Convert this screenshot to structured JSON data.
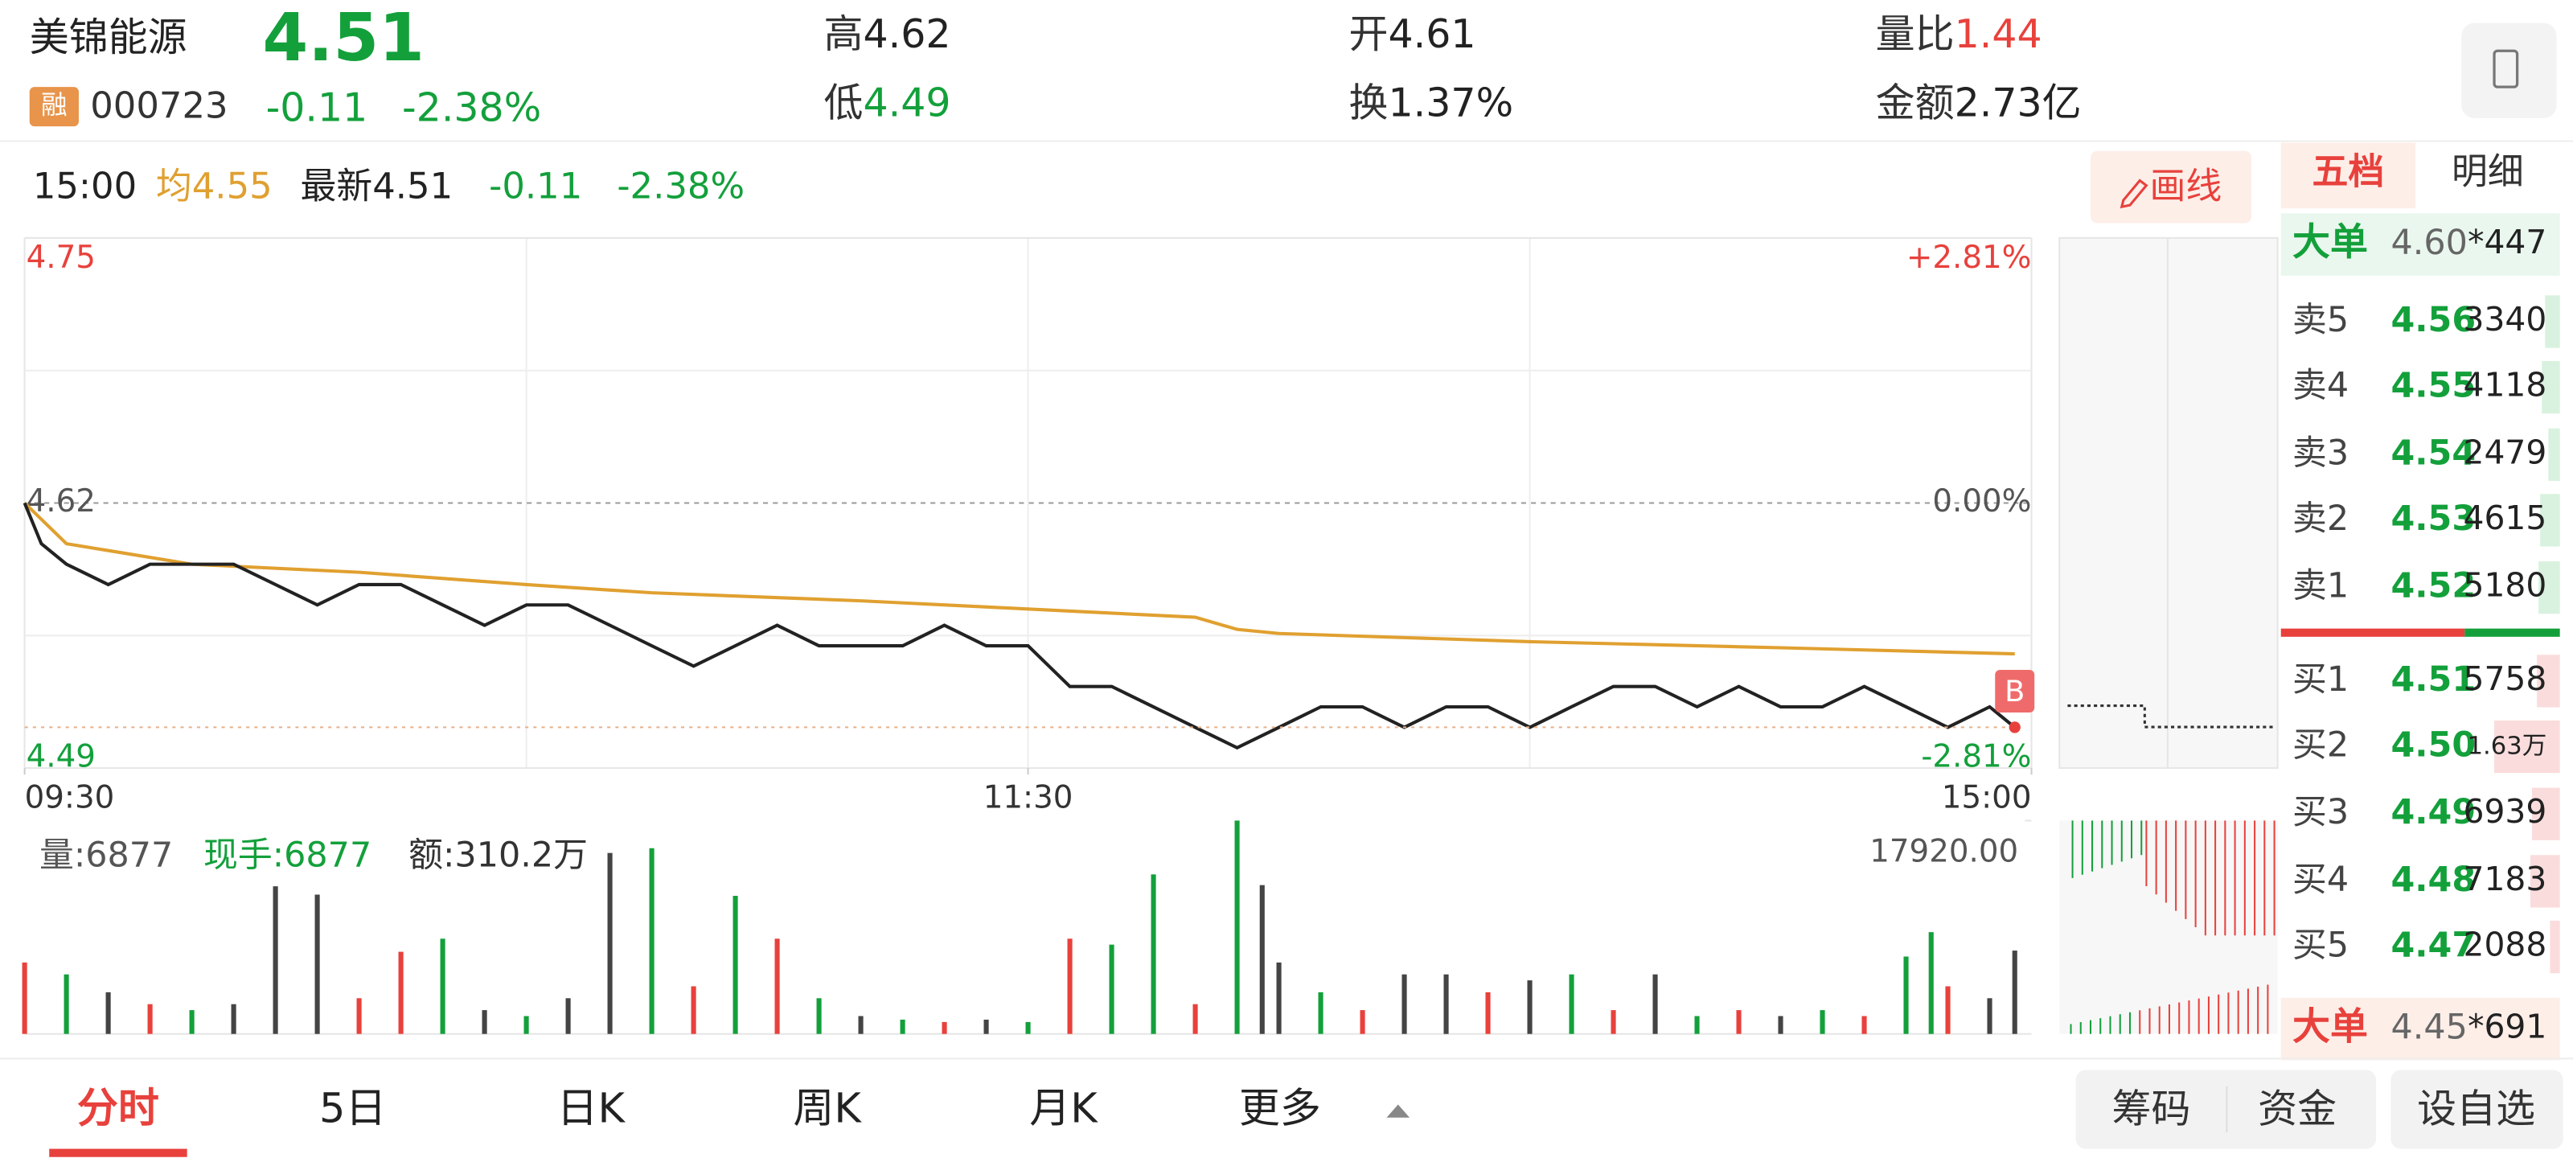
{
  "header": {
    "name": "美锦能源",
    "price": "4.51",
    "badge": "融",
    "code": "000723",
    "change": "-0.11",
    "change_pct": "-2.38%",
    "stats": [
      {
        "label": "高",
        "value": "4.62"
      },
      {
        "label": "低",
        "value": "4.49"
      },
      {
        "label": "开",
        "value": "4.61"
      },
      {
        "label": "换",
        "value": "1.37%"
      },
      {
        "label": "量比",
        "value": "1.44"
      },
      {
        "label": "金额",
        "value": "2.73亿"
      }
    ]
  },
  "info_bar": {
    "time": "15:00",
    "avg": "4.55",
    "latest": "4.51",
    "change": "-0.11",
    "change_pct": "-2.38%",
    "draw_button": "画线"
  },
  "chart_data": [
    {
      "type": "line",
      "xlim": [
        0,
        240
      ],
      "xticks": [
        {
          "value": 0,
          "label": "09:30"
        },
        {
          "value": 120,
          "label": "11:30"
        },
        {
          "value": 240,
          "label": "15:00"
        }
      ],
      "ylim": [
        4.49,
        4.75
      ],
      "yticks": [
        4.75,
        4.62,
        4.49
      ],
      "y2lim": [
        -2.81,
        2.81
      ],
      "y2ticks": [
        {
          "value": 2.81,
          "label": "+2.81%"
        },
        {
          "value": 0,
          "label": "0.00%"
        },
        {
          "value": -2.81,
          "label": "-2.81%"
        }
      ],
      "series": [
        {
          "name": "均",
          "color": "#e0a030",
          "x": [
            0,
            5,
            20,
            40,
            60,
            75,
            100,
            120,
            140,
            145,
            150,
            180,
            210,
            238
          ],
          "values": [
            4.62,
            4.6,
            4.59,
            4.586,
            4.58,
            4.576,
            4.572,
            4.568,
            4.564,
            4.558,
            4.556,
            4.552,
            4.549,
            4.546
          ]
        },
        {
          "name": "最新",
          "color": "#222222",
          "x": [
            0,
            2,
            5,
            10,
            15,
            20,
            25,
            30,
            35,
            40,
            45,
            50,
            55,
            60,
            65,
            70,
            75,
            80,
            85,
            90,
            95,
            100,
            105,
            110,
            115,
            120,
            125,
            130,
            135,
            140,
            145,
            150,
            155,
            160,
            165,
            170,
            175,
            180,
            185,
            190,
            195,
            200,
            205,
            210,
            215,
            220,
            225,
            230,
            235,
            238
          ],
          "values": [
            4.62,
            4.6,
            4.59,
            4.58,
            4.59,
            4.59,
            4.59,
            4.58,
            4.57,
            4.58,
            4.58,
            4.57,
            4.56,
            4.57,
            4.57,
            4.56,
            4.55,
            4.54,
            4.55,
            4.56,
            4.55,
            4.55,
            4.55,
            4.56,
            4.55,
            4.55,
            4.53,
            4.53,
            4.52,
            4.51,
            4.5,
            4.51,
            4.52,
            4.52,
            4.51,
            4.52,
            4.52,
            4.51,
            4.52,
            4.53,
            4.53,
            4.52,
            4.53,
            4.52,
            4.52,
            4.53,
            4.52,
            4.51,
            4.52,
            4.51
          ]
        }
      ],
      "marker_label": "B"
    },
    {
      "type": "bar",
      "xlim": [
        0,
        240
      ],
      "ylim": [
        0,
        17920
      ],
      "yticks": [
        {
          "value": 17920,
          "label": "17920.00"
        }
      ],
      "volume_label": "量:6877",
      "current_label": "现手:6877",
      "amount_label": "额:310.2万",
      "x": [
        0,
        5,
        10,
        15,
        20,
        25,
        30,
        35,
        40,
        45,
        50,
        55,
        60,
        65,
        70,
        75,
        80,
        85,
        90,
        95,
        100,
        105,
        110,
        115,
        120,
        125,
        130,
        135,
        140,
        145,
        148,
        150,
        155,
        160,
        165,
        170,
        175,
        180,
        185,
        190,
        195,
        200,
        205,
        210,
        215,
        220,
        225,
        228,
        230,
        235,
        238
      ],
      "values": [
        6000,
        5000,
        3500,
        2500,
        2000,
        2500,
        12400,
        11700,
        3000,
        6900,
        8000,
        2000,
        1500,
        3000,
        15200,
        15600,
        4000,
        11600,
        8000,
        3000,
        1500,
        1200,
        1000,
        1200,
        1000,
        8000,
        7500,
        13400,
        2500,
        17920,
        12500,
        6000,
        3500,
        2000,
        5000,
        5000,
        3500,
        4500,
        5000,
        2000,
        5000,
        1500,
        2000,
        1500,
        2000,
        1500,
        6500,
        8550,
        4000,
        3000,
        7000
      ],
      "colors": [
        "#e8413c",
        "#13a03b",
        "#444444",
        "#e8413c",
        "#13a03b",
        "#444444",
        "#444444",
        "#444444",
        "#e8413c",
        "#e8413c",
        "#13a03b",
        "#444444",
        "#13a03b",
        "#444444",
        "#444444",
        "#13a03b",
        "#e8413c",
        "#13a03b",
        "#e8413c",
        "#13a03b",
        "#444444",
        "#13a03b",
        "#e8413c",
        "#444444",
        "#13a03b",
        "#e8413c",
        "#13a03b",
        "#13a03b",
        "#e8413c",
        "#13a03b",
        "#444444",
        "#444444",
        "#13a03b",
        "#e8413c",
        "#444444",
        "#444444",
        "#e8413c",
        "#444444",
        "#13a03b",
        "#e8413c",
        "#444444",
        "#13a03b",
        "#e8413c",
        "#444444",
        "#13a03b",
        "#e8413c",
        "#13a03b",
        "#13a03b",
        "#e8413c",
        "#444444",
        "#444444"
      ]
    }
  ],
  "order_book": {
    "tabs": [
      "五档",
      "明细"
    ],
    "big_sell": {
      "label": "大单",
      "price": "4.60",
      "volume": "*447"
    },
    "asks": [
      {
        "label": "卖5",
        "price": "4.56",
        "volume": "3340"
      },
      {
        "label": "卖4",
        "price": "4.55",
        "volume": "4118"
      },
      {
        "label": "卖3",
        "price": "4.54",
        "volume": "2479"
      },
      {
        "label": "卖2",
        "price": "4.53",
        "volume": "4615"
      },
      {
        "label": "卖1",
        "price": "4.52",
        "volume": "5180"
      }
    ],
    "bids": [
      {
        "label": "买1",
        "price": "4.51",
        "volume": "5758"
      },
      {
        "label": "买2",
        "price": "4.50",
        "volume": "1.63万"
      },
      {
        "label": "买3",
        "price": "4.49",
        "volume": "6939"
      },
      {
        "label": "买4",
        "price": "4.48",
        "volume": "7183"
      },
      {
        "label": "买5",
        "price": "4.47",
        "volume": "2088"
      }
    ],
    "big_buy": {
      "label": "大单",
      "price": "4.45",
      "volume": "*691"
    }
  },
  "bottom_bar": {
    "tabs": [
      "分时",
      "5日",
      "日K",
      "周K",
      "月K",
      "更多"
    ],
    "buttons": [
      "筹码",
      "资金",
      "设自选"
    ]
  }
}
